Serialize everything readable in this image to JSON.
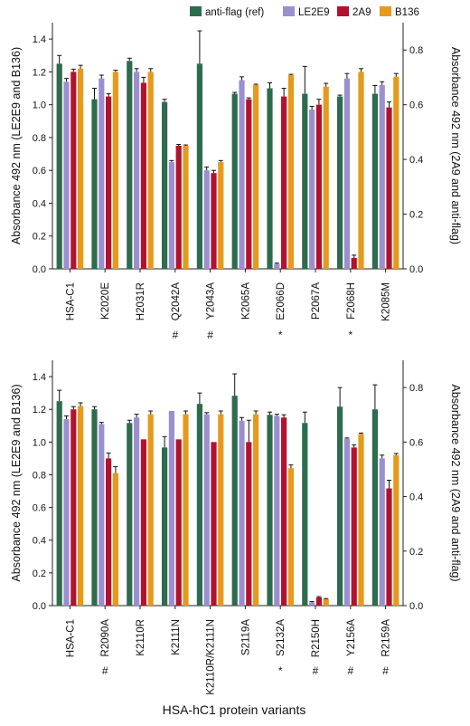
{
  "legend": {
    "items": [
      {
        "label": "anti-flag (ref)",
        "color": "#2e6b4f"
      },
      {
        "label": "LE2E9",
        "color": "#9b8fd0"
      },
      {
        "label": "2A9",
        "color": "#b3122e"
      },
      {
        "label": "B136",
        "color": "#e69a1c"
      }
    ]
  },
  "xlabel": "HSA-hC1 protein variants",
  "chart_data": [
    {
      "type": "bar",
      "ylabel_left": "Absorbance 492 nm (LE2E9 and B136)",
      "ylabel_right": "Absorbance 492 nm (2A9 and anti-flag)",
      "ylim_left": [
        0,
        1.5
      ],
      "ylim_right": [
        0,
        0.9
      ],
      "yticks_left": [
        "0.0",
        "0.2",
        "0.4",
        "0.6",
        "0.8",
        "1.0",
        "1.2",
        "1.4"
      ],
      "yticks_right": [
        "0.0",
        "0.2",
        "0.4",
        "0.6",
        "0.8"
      ],
      "categories": [
        "HSA-C1",
        "K2020E",
        "H2031R",
        "Q2042A",
        "Y2043A",
        "K2065A",
        "E2066D",
        "P2067A",
        "F2068H",
        "K2085M"
      ],
      "marks": [
        "",
        "",
        "",
        "#",
        "#",
        "",
        "*",
        "",
        "*",
        ""
      ],
      "series": [
        {
          "name": "anti-flag (ref)",
          "axis": "right",
          "values": [
            0.75,
            0.62,
            0.76,
            0.61,
            0.75,
            0.64,
            0.66,
            0.64,
            0.63,
            0.64
          ],
          "errors": [
            0.03,
            0.04,
            0.01,
            0.01,
            0.12,
            0.005,
            0.02,
            0.1,
            0.005,
            0.03
          ]
        },
        {
          "name": "LE2E9",
          "axis": "left",
          "values": [
            1.14,
            1.16,
            1.2,
            0.65,
            0.6,
            1.15,
            0.03,
            0.97,
            1.16,
            1.12
          ],
          "errors": [
            0.02,
            0.02,
            0.02,
            0.01,
            0.02,
            0.02,
            0.005,
            0.02,
            0.03,
            0.02
          ]
        },
        {
          "name": "2A9",
          "axis": "right",
          "values": [
            0.72,
            0.63,
            0.68,
            0.45,
            0.35,
            0.62,
            0.63,
            0.6,
            0.04,
            0.59
          ],
          "errors": [
            0.01,
            0.01,
            0.02,
            0.005,
            0.01,
            0.005,
            0.03,
            0.02,
            0.01,
            0.02
          ]
        },
        {
          "name": "B136",
          "axis": "left",
          "values": [
            1.22,
            1.2,
            1.2,
            0.75,
            0.65,
            1.12,
            1.18,
            1.11,
            1.2,
            1.17
          ],
          "errors": [
            0.02,
            0.01,
            0.02,
            0.005,
            0.01,
            0.005,
            0.005,
            0.02,
            0.02,
            0.02
          ]
        }
      ]
    },
    {
      "type": "bar",
      "ylabel_left": "Absorbance 492 nm (LE2E9 and B136)",
      "ylabel_right": "Absorbance 492 nm (2A9 and anti-flag)",
      "ylim_left": [
        0,
        1.5
      ],
      "ylim_right": [
        0,
        0.9
      ],
      "yticks_left": [
        "0.0",
        "0.2",
        "0.4",
        "0.6",
        "0.8",
        "1.0",
        "1.2",
        "1.4"
      ],
      "yticks_right": [
        "0.0",
        "0.2",
        "0.4",
        "0.6",
        "0.8"
      ],
      "categories": [
        "HSA-C1",
        "R2090A",
        "K2110R",
        "K2111N",
        "K2110R/K2111N",
        "S2119A",
        "S2132A",
        "R2150H",
        "Y2156A",
        "R2159A"
      ],
      "marks": [
        "",
        "#",
        "",
        "",
        "",
        "",
        "*",
        "#",
        "#",
        "#"
      ],
      "series": [
        {
          "name": "anti-flag (ref)",
          "axis": "right",
          "values": [
            0.75,
            0.72,
            0.67,
            0.58,
            0.74,
            0.77,
            0.7,
            0.67,
            0.73,
            0.72
          ],
          "errors": [
            0.04,
            0.01,
            0.01,
            0.04,
            0.04,
            0.08,
            0.01,
            0.04,
            0.07,
            0.09
          ]
        },
        {
          "name": "LE2E9",
          "axis": "left",
          "values": [
            1.14,
            1.11,
            1.15,
            1.19,
            1.17,
            1.13,
            1.16,
            0.02,
            1.02,
            0.9
          ],
          "errors": [
            0.02,
            0.01,
            0.02,
            0.0,
            0.01,
            0.02,
            0.01,
            0.005,
            0.005,
            0.02
          ]
        },
        {
          "name": "2A9",
          "axis": "right",
          "values": [
            0.72,
            0.54,
            0.61,
            0.61,
            0.6,
            0.6,
            0.69,
            0.03,
            0.58,
            0.43
          ],
          "errors": [
            0.01,
            0.02,
            0.0,
            0.0,
            0.0,
            0.08,
            0.01,
            0.003,
            0.01,
            0.03
          ]
        },
        {
          "name": "B136",
          "axis": "left",
          "values": [
            1.22,
            0.81,
            1.17,
            1.17,
            1.17,
            1.17,
            0.84,
            0.04,
            1.05,
            0.92
          ],
          "errors": [
            0.02,
            0.04,
            0.02,
            0.02,
            0.02,
            0.02,
            0.02,
            0.003,
            0.005,
            0.01
          ]
        }
      ]
    }
  ]
}
